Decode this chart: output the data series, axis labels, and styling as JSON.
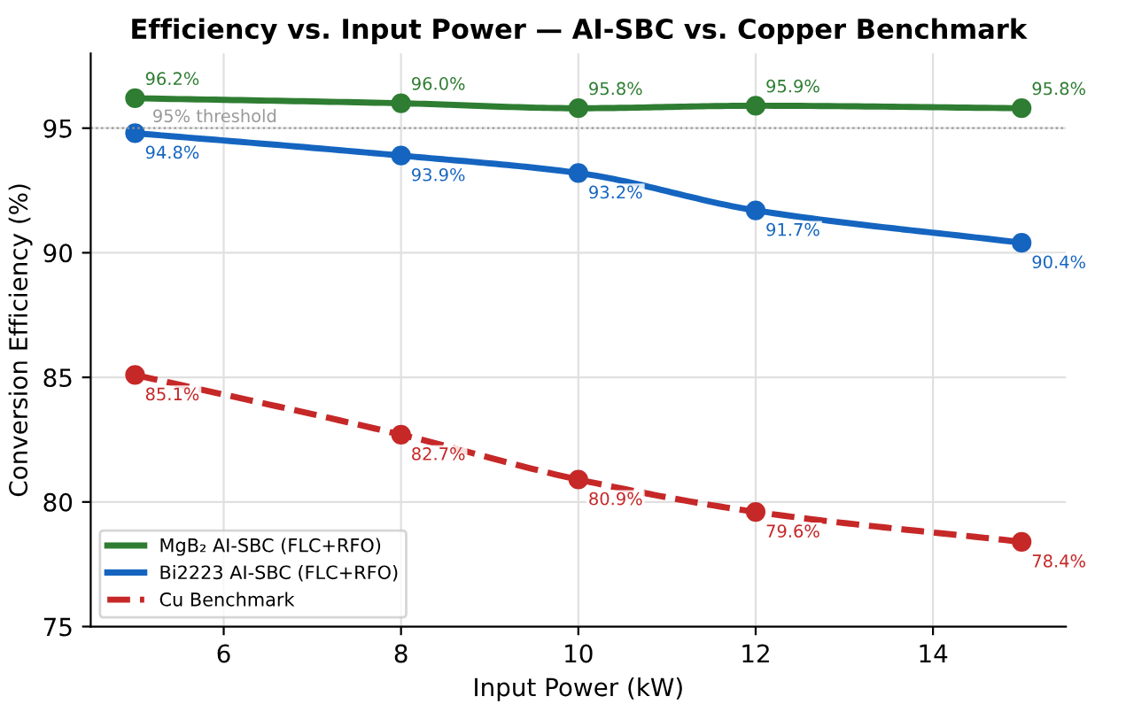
{
  "chart_data": {
    "type": "line",
    "title": "Efficiency vs. Input Power — AI-SBC vs. Copper Benchmark",
    "xlabel": "Input Power (kW)",
    "ylabel": "Conversion Efficiency (%)",
    "x": [
      5,
      8,
      10,
      12,
      15
    ],
    "series": [
      {
        "name": "MgB₂ AI-SBC (FLC+RFO)",
        "color": "#2e7d32",
        "values": [
          96.2,
          96.0,
          95.8,
          95.9,
          95.8
        ],
        "value_labels": [
          "96.2%",
          "96.0%",
          "95.8%",
          "95.9%",
          "95.8%"
        ],
        "line_style": "solid"
      },
      {
        "name": "Bi2223 AI-SBC (FLC+RFO)",
        "color": "#1565c0",
        "values": [
          94.8,
          93.9,
          93.2,
          91.7,
          90.4
        ],
        "value_labels": [
          "94.8%",
          "93.9%",
          "93.2%",
          "91.7%",
          "90.4%"
        ],
        "line_style": "solid"
      },
      {
        "name": "Cu Benchmark",
        "color": "#c62828",
        "values": [
          85.1,
          82.7,
          80.9,
          79.6,
          78.4
        ],
        "value_labels": [
          "85.1%",
          "82.7%",
          "80.9%",
          "79.6%",
          "78.4%"
        ],
        "line_style": "dashed"
      }
    ],
    "ref_lines": [
      {
        "axis": "y",
        "value": 95,
        "label": "95% threshold",
        "color": "#999999",
        "line_style": "dotted"
      }
    ],
    "xlim": [
      4.5,
      15.5
    ],
    "ylim": [
      75,
      98
    ],
    "xticks": [
      6,
      8,
      10,
      12,
      14
    ],
    "yticks": [
      75,
      80,
      85,
      90,
      95
    ],
    "grid": true,
    "legend": "bottom left",
    "marker": "circle"
  }
}
